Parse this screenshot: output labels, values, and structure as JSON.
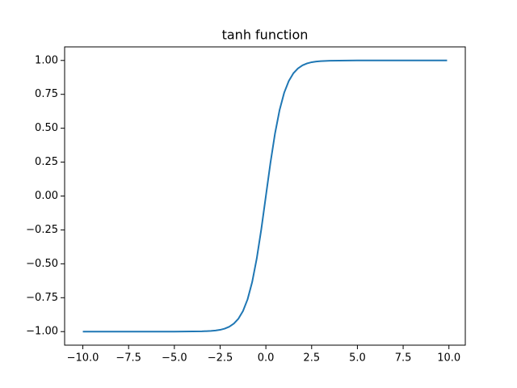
{
  "chart_data": {
    "type": "line",
    "title": "tanh function",
    "x": [
      -10,
      -9,
      -8,
      -7,
      -6,
      -5,
      -4,
      -3.5,
      -3,
      -2.75,
      -2.5,
      -2.25,
      -2,
      -1.75,
      -1.5,
      -1.25,
      -1,
      -0.75,
      -0.5,
      -0.25,
      0,
      0.25,
      0.5,
      0.75,
      1,
      1.25,
      1.5,
      1.75,
      2,
      2.25,
      2.5,
      2.75,
      3,
      3.5,
      4,
      5,
      6,
      7,
      8,
      9,
      9.9
    ],
    "series": [
      {
        "color": "#1f77b4",
        "values": [
          -1,
          -1,
          -1,
          -1,
          -1,
          -1,
          -0.999,
          -0.998,
          -0.995,
          -0.992,
          -0.987,
          -0.978,
          -0.964,
          -0.941,
          -0.905,
          -0.848,
          -0.762,
          -0.635,
          -0.462,
          -0.245,
          0,
          0.245,
          0.462,
          0.635,
          0.762,
          0.848,
          0.905,
          0.941,
          0.964,
          0.978,
          0.987,
          0.992,
          0.995,
          0.998,
          0.999,
          1,
          1,
          1,
          1,
          1,
          1
        ]
      }
    ],
    "xlim": [
      -10.995,
      10.895
    ],
    "ylim": [
      -1.1,
      1.1
    ],
    "xticks": [
      {
        "value": -10,
        "label": "−10.0"
      },
      {
        "value": -7.5,
        "label": "−7.5"
      },
      {
        "value": -5,
        "label": "−5.0"
      },
      {
        "value": -2.5,
        "label": "−2.5"
      },
      {
        "value": 0,
        "label": "0.0"
      },
      2.5,
      {
        "value": 5,
        "label": "5.0"
      },
      7.5,
      {
        "value": 10,
        "label": "10.0"
      }
    ],
    "yticks": [
      {
        "value": -1,
        "label": "−1.00"
      },
      {
        "value": -0.75,
        "label": "−0.75"
      },
      {
        "value": -0.5,
        "label": "−0.50"
      },
      {
        "value": -0.25,
        "label": "−0.25"
      },
      {
        "value": 0,
        "label": "0.00"
      },
      0.25,
      {
        "value": 0.5,
        "label": "0.50"
      },
      0.75,
      {
        "value": 1,
        "label": "1.00"
      }
    ],
    "grid": false
  }
}
